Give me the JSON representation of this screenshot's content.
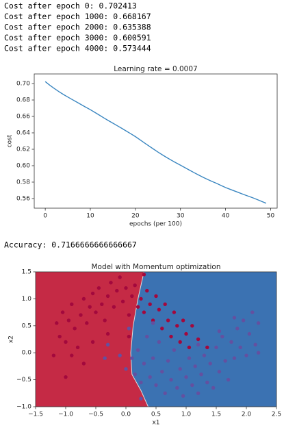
{
  "outputs": [
    "Cost after epoch 0: 0.702413",
    "Cost after epoch 1000: 0.668167",
    "Cost after epoch 2000: 0.635388",
    "Cost after epoch 3000: 0.600591",
    "Cost after epoch 4000: 0.573444"
  ],
  "accuracy": "Accuracy: 0.7166666666666667",
  "chart_data": [
    {
      "type": "line",
      "title": "Learning rate = 0.0007",
      "xlabel": "epochs (per 100)",
      "ylabel": "cost",
      "x": [
        0,
        1,
        2,
        3,
        4,
        5,
        6,
        7,
        8,
        9,
        10,
        11,
        12,
        13,
        14,
        15,
        16,
        17,
        18,
        19,
        20,
        21,
        22,
        23,
        24,
        25,
        26,
        27,
        28,
        29,
        30,
        31,
        32,
        33,
        34,
        35,
        36,
        37,
        38,
        39,
        40,
        41,
        42,
        43,
        44,
        45,
        46,
        47,
        48,
        49
      ],
      "series": [
        {
          "color": "#3a86c0",
          "values": [
            0.7024,
            0.698,
            0.694,
            0.6903,
            0.6868,
            0.6836,
            0.6805,
            0.6774,
            0.6743,
            0.6712,
            0.6682,
            0.6649,
            0.6616,
            0.6582,
            0.6549,
            0.6518,
            0.6486,
            0.6454,
            0.6421,
            0.6388,
            0.6354,
            0.6316,
            0.6278,
            0.624,
            0.6203,
            0.6166,
            0.6131,
            0.6098,
            0.6066,
            0.6035,
            0.6006,
            0.5976,
            0.5946,
            0.5916,
            0.5887,
            0.5859,
            0.5833,
            0.5808,
            0.5785,
            0.5759,
            0.5734,
            0.5713,
            0.5692,
            0.5671,
            0.565,
            0.563,
            0.561,
            0.5588,
            0.5565,
            0.5543
          ]
        }
      ],
      "xlim": [
        -2.45,
        51.45
      ],
      "xticks": [
        0,
        10,
        20,
        30,
        40,
        50
      ],
      "ylim": [
        0.5483,
        0.7117
      ],
      "yticks": [
        0.56,
        0.58,
        {
          "value": 0.6,
          "label": "0.60"
        },
        0.62,
        0.64,
        0.66,
        0.68,
        {
          "value": 0.7,
          "label": "0.70"
        }
      ]
    },
    {
      "type": "scatter",
      "title": "Model with Momentum optimization",
      "xlabel": "x1",
      "ylabel": "x2",
      "region_colors": [
        "#c52a45",
        "#3b72b2"
      ],
      "boundary": {
        "x": [
          0.3,
          0.2,
          0.12,
          0.08,
          0.1,
          0.25,
          0.37
        ],
        "y": [
          1.5,
          1.0,
          0.5,
          0.0,
          -0.4,
          -0.7,
          -1.0
        ]
      },
      "series": [
        {
          "color": "#a3083d",
          "x": [
            -1.2,
            -1.1,
            -1.15,
            -1.0,
            -0.95,
            -0.9,
            -0.85,
            -0.8,
            -0.75,
            -0.7,
            -0.65,
            -0.6,
            -0.55,
            -0.5,
            -0.45,
            -0.4,
            -0.35,
            -0.3,
            -0.25,
            -0.2,
            -0.15,
            -0.1,
            -0.05,
            0.0,
            0.05,
            0.1,
            0.15,
            0.2,
            0.25,
            0.3,
            0.35,
            0.4,
            0.45,
            0.5,
            0.55,
            0.6,
            0.65,
            0.7,
            0.75,
            0.8,
            0.85,
            0.9,
            0.95,
            1.0,
            1.05,
            1.1,
            -1.0,
            -0.9,
            -0.7,
            -0.55,
            -0.3,
            0.05,
            1.2,
            1.35,
            -1.05,
            0.3
          ],
          "y": [
            -0.05,
            0.3,
            0.55,
            0.2,
            0.6,
            0.9,
            0.45,
            0.1,
            0.7,
            1.0,
            0.55,
            0.85,
            1.1,
            0.75,
            1.2,
            0.9,
            0.6,
            1.05,
            1.3,
            0.85,
            1.15,
            1.4,
            0.95,
            1.2,
            0.7,
            1.05,
            1.25,
            0.85,
            1.0,
            0.75,
            1.15,
            0.9,
            0.6,
            1.05,
            0.8,
            0.45,
            0.9,
            0.6,
            0.3,
            0.75,
            0.5,
            0.2,
            0.6,
            0.35,
            0.1,
            0.5,
            -0.45,
            -0.05,
            -0.2,
            0.2,
            0.35,
            0.3,
            0.25,
            0.1,
            0.75,
            1.45
          ]
        },
        {
          "color": "#6450a0",
          "x": [
            -0.35,
            -0.3,
            -0.1,
            0.0,
            0.05,
            0.15,
            0.2,
            0.25,
            0.3,
            0.35,
            0.4,
            0.45,
            0.5,
            0.55,
            0.6,
            0.65,
            0.7,
            0.75,
            0.8,
            0.85,
            0.9,
            0.95,
            1.0,
            1.05,
            1.1,
            1.15,
            1.2,
            1.25,
            1.3,
            1.35,
            1.4,
            1.45,
            1.5,
            1.55,
            1.6,
            1.65,
            1.7,
            1.75,
            1.8,
            1.85,
            1.9,
            1.95,
            2.0,
            2.05,
            2.1,
            2.15,
            2.2,
            1.8,
            1.55,
            0.1,
            0.45,
            1.2,
            2.2,
            0.25
          ],
          "y": [
            -0.1,
            0.15,
            -0.05,
            -0.3,
            0.45,
            -0.4,
            0.05,
            -0.55,
            -0.2,
            0.3,
            -0.45,
            -0.1,
            -0.6,
            0.2,
            -0.35,
            -0.75,
            -0.15,
            -0.5,
            0.05,
            -0.65,
            -0.3,
            -0.8,
            -0.45,
            -0.1,
            -0.6,
            -0.25,
            -0.75,
            -0.4,
            -0.05,
            -0.55,
            -0.2,
            -0.65,
            0.1,
            -0.35,
            0.3,
            -0.15,
            -0.5,
            0.2,
            -0.1,
            0.45,
            0.1,
            0.6,
            -0.05,
            0.35,
            0.75,
            0.15,
            0.55,
            0.65,
            0.4,
            -0.1,
            0.55,
            0.15,
            0.0,
            -0.85
          ]
        }
      ],
      "xlim": [
        -1.5,
        2.5
      ],
      "xticks": [
        {
          "value": -1.5,
          "label": "−1.5"
        },
        {
          "value": -1,
          "label": "−1.0"
        },
        {
          "value": -0.5,
          "label": "−0.5"
        },
        {
          "value": 0,
          "label": "0.0"
        },
        0.5,
        {
          "value": 1,
          "label": "1.0"
        },
        1.5,
        {
          "value": 2,
          "label": "2.0"
        },
        2.5
      ],
      "ylim": [
        -1,
        1.5
      ],
      "yticks": [
        {
          "value": -1,
          "label": "−1.0"
        },
        {
          "value": -0.5,
          "label": "−0.5"
        },
        {
          "value": 0,
          "label": "0.0"
        },
        0.5,
        {
          "value": 1,
          "label": "1.0"
        },
        1.5
      ]
    }
  ]
}
